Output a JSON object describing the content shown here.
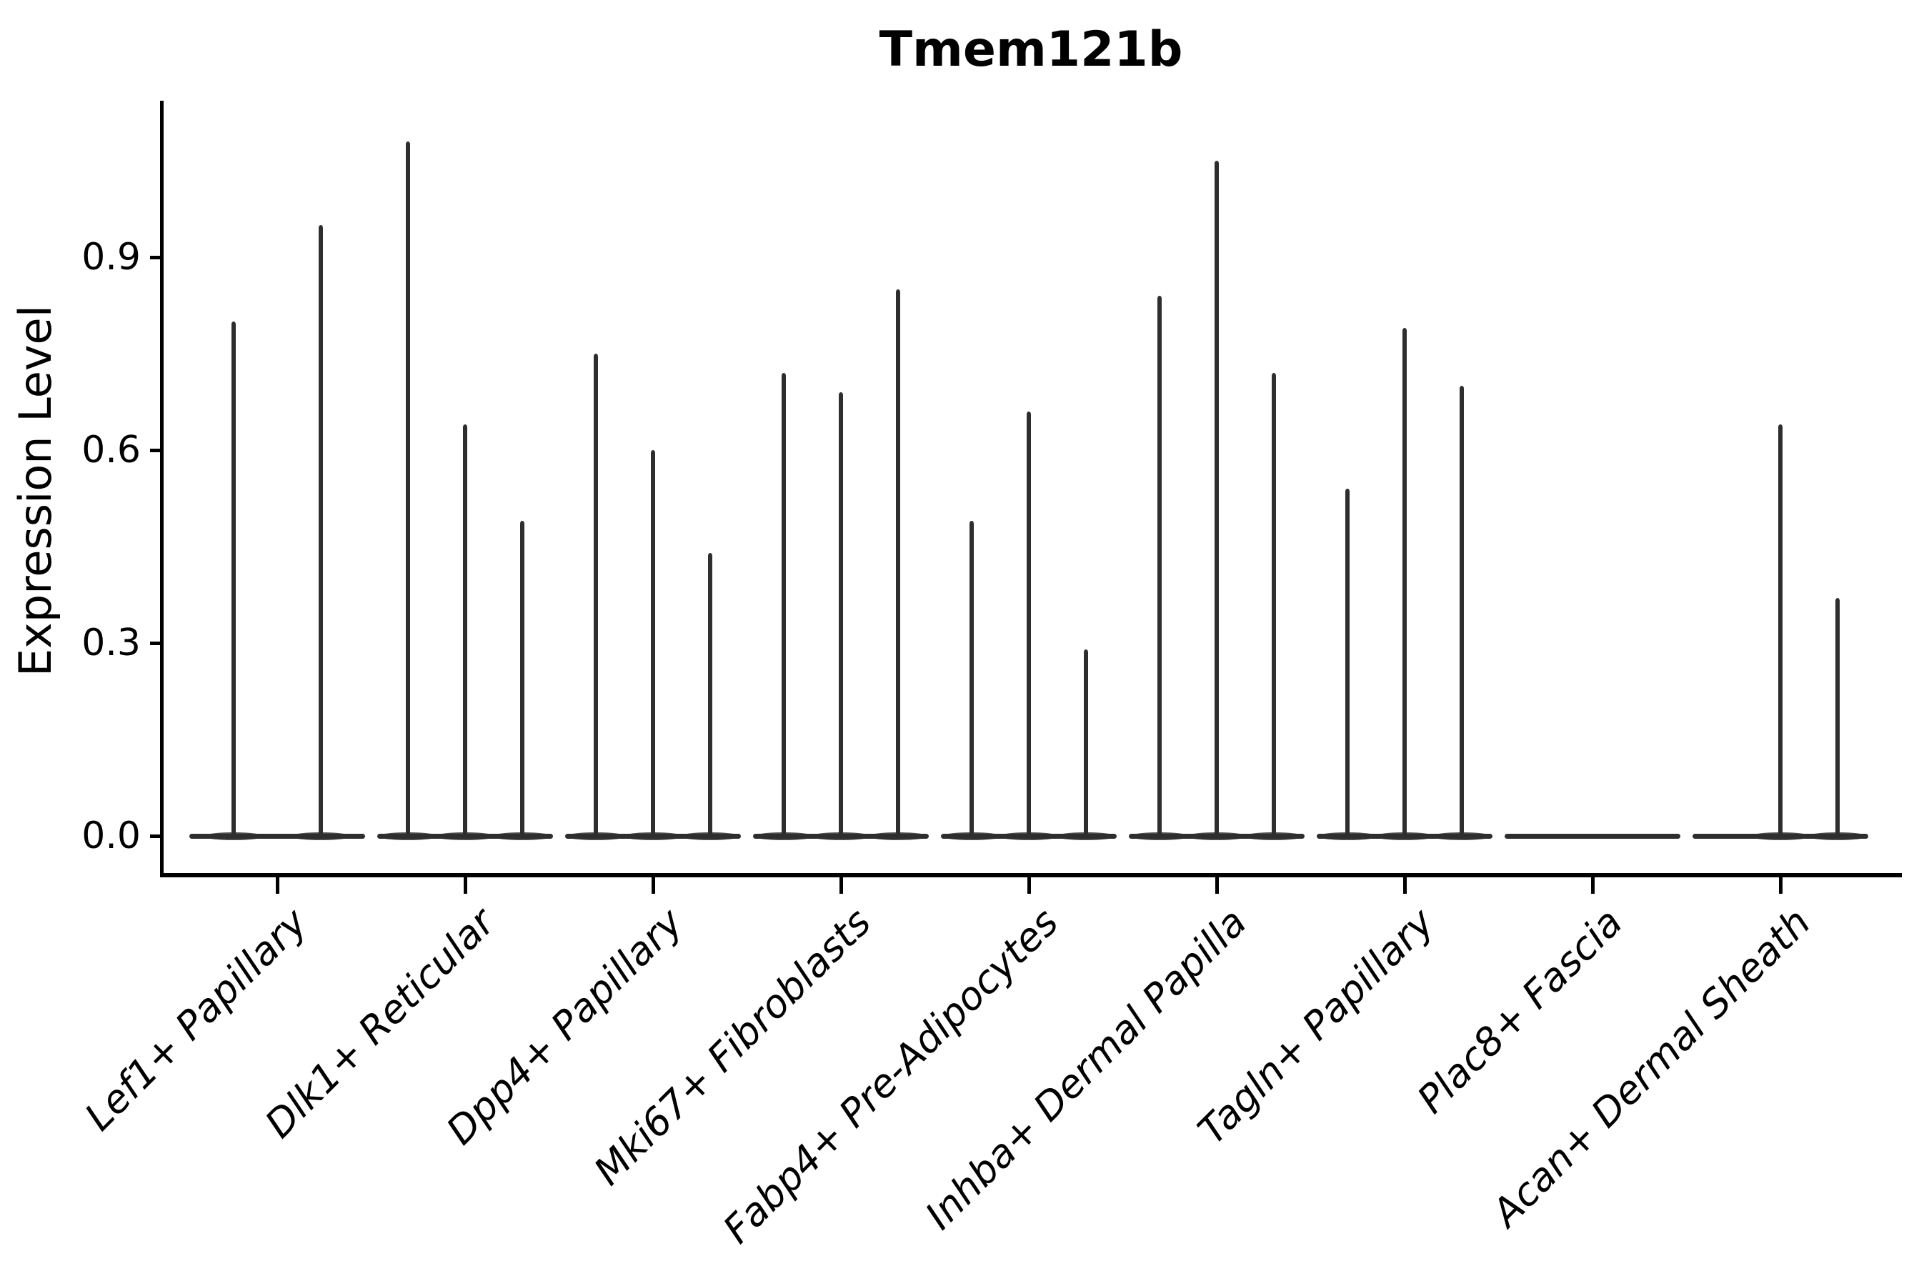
{
  "title": "Tmem121b",
  "chart_data": {
    "type": "violin",
    "title": "Tmem121b",
    "xlabel": "",
    "ylabel": "Expression Level",
    "ylim": [
      0,
      1.14
    ],
    "yticks": [
      0.0,
      0.3,
      0.6,
      0.9
    ],
    "ytick_labels": [
      "0.0",
      "0.3",
      "0.6",
      "0.9"
    ],
    "grid": false,
    "legend_position": "none",
    "description": "Single-cell expression violin plot; each cluster shows 2-3 near-zero-width violins (spikes) whose peaks mark maximum expression; flat baselines mark violins with all cells at 0.",
    "categories": [
      "Lef1+ Papillary",
      "Dlk1+ Reticular",
      "Dpp4+ Papillary",
      "Mki67+ Fibroblasts",
      "Fabp4+ Pre-Adipocytes",
      "Inhba+ Dermal Papilla",
      "Tagln+ Papillary",
      "Plac8+ Fascia",
      "Acan+ Dermal Sheath"
    ],
    "groups": [
      {
        "category": "Lef1+ Papillary",
        "violins": [
          {
            "offset": -61,
            "peak": 0.8
          },
          {
            "offset": 61,
            "peak": 0.95
          }
        ]
      },
      {
        "category": "Dlk1+ Reticular",
        "violins": [
          {
            "offset": -80,
            "peak": 1.08
          },
          {
            "offset": 0,
            "peak": 0.64
          },
          {
            "offset": 80,
            "peak": 0.49
          }
        ]
      },
      {
        "category": "Dpp4+ Papillary",
        "violins": [
          {
            "offset": -80,
            "peak": 0.75
          },
          {
            "offset": 0,
            "peak": 0.6
          },
          {
            "offset": 80,
            "peak": 0.44
          }
        ]
      },
      {
        "category": "Mki67+ Fibroblasts",
        "violins": [
          {
            "offset": -80,
            "peak": 0.72
          },
          {
            "offset": 0,
            "peak": 0.69
          },
          {
            "offset": 80,
            "peak": 0.85
          }
        ]
      },
      {
        "category": "Fabp4+ Pre-Adipocytes",
        "violins": [
          {
            "offset": -80,
            "peak": 0.49
          },
          {
            "offset": 0,
            "peak": 0.66
          },
          {
            "offset": 80,
            "peak": 0.29
          }
        ]
      },
      {
        "category": "Inhba+ Dermal Papilla",
        "violins": [
          {
            "offset": -80,
            "peak": 0.84
          },
          {
            "offset": 0,
            "peak": 1.05
          },
          {
            "offset": 80,
            "peak": 0.72
          }
        ]
      },
      {
        "category": "Tagln+ Papillary",
        "violins": [
          {
            "offset": -80,
            "peak": 0.54
          },
          {
            "offset": 0,
            "peak": 0.79
          },
          {
            "offset": 80,
            "peak": 0.7
          }
        ]
      },
      {
        "category": "Plac8+ Fascia",
        "violins": [
          {
            "offset": -80,
            "peak": 0.0
          },
          {
            "offset": 0,
            "peak": 0.0
          },
          {
            "offset": 80,
            "peak": 0.0
          }
        ]
      },
      {
        "category": "Acan+ Dermal Sheath",
        "violins": [
          {
            "offset": -80,
            "peak": 0.0
          },
          {
            "offset": 0,
            "peak": 0.64
          },
          {
            "offset": 80,
            "peak": 0.37
          }
        ]
      }
    ]
  }
}
